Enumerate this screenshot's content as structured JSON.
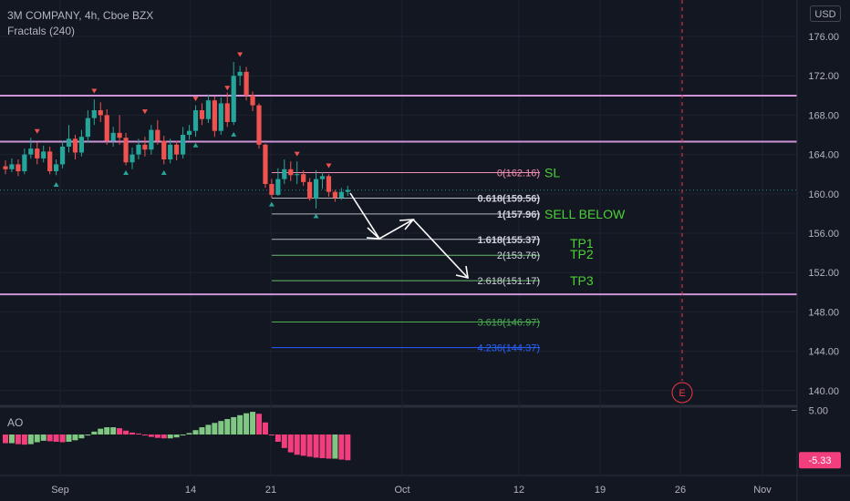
{
  "header": {
    "title": "3M COMPANY, 4h, Cboe BZX",
    "indicator": "Fractals (240)",
    "currency": "USD"
  },
  "colors": {
    "bg": "#131722",
    "up": "#26a69a",
    "down": "#ef5350",
    "hline": "#ce93d8",
    "fib": "#b2b5be",
    "fib3618": "#4caf50",
    "fib4236": "#2962ff",
    "green_text": "#4cd137",
    "ao_up": "#81c784",
    "ao_down": "#f23e7d",
    "current": "#1e8a7f"
  },
  "chart_data": {
    "type": "candlestick",
    "symbol": "3M COMPANY",
    "timeframe": "4h",
    "yaxis": {
      "ticks": [
        "176.00",
        "172.00",
        "168.00",
        "164.00",
        "160.00",
        "156.00",
        "152.00",
        "148.00",
        "144.00",
        "140.00"
      ]
    },
    "xaxis": {
      "ticks": [
        "Sep",
        "14",
        "21",
        "Oct",
        "12",
        "19",
        "26",
        "Nov"
      ]
    },
    "current_price": "160.37",
    "horizontal_lines": [
      {
        "price": 169.98,
        "label": "169.98"
      },
      {
        "price": 165.3,
        "label": "165.30"
      },
      {
        "price": 149.78,
        "label": "149.78"
      }
    ],
    "fib_levels": [
      {
        "price": 162.16,
        "label": "0(162.16)",
        "note": "SL"
      },
      {
        "price": 159.56,
        "label": "0.618(159.56)",
        "note": ""
      },
      {
        "price": 157.96,
        "label": "1(157.96)",
        "note": "SELL BELOW"
      },
      {
        "price": 155.37,
        "label": "1.618(155.37)",
        "note": "TP1"
      },
      {
        "price": 153.76,
        "label": "2(153.76)",
        "note": "TP2"
      },
      {
        "price": 151.17,
        "label": "2.618(151.17)",
        "note": "TP3"
      },
      {
        "price": 146.97,
        "label": "3.618(146.97)",
        "note": ""
      },
      {
        "price": 144.37,
        "label": "4.236(144.37)",
        "note": ""
      }
    ],
    "candles": [
      [
        162.8,
        162.5,
        163.4,
        162.0
      ],
      [
        162.5,
        163.0,
        163.6,
        162.2
      ],
      [
        163.0,
        162.3,
        163.5,
        161.8
      ],
      [
        162.3,
        164.0,
        164.6,
        162.0
      ],
      [
        164.0,
        164.6,
        165.7,
        163.6
      ],
      [
        164.6,
        163.6,
        165.2,
        163.0
      ],
      [
        163.6,
        164.3,
        164.9,
        163.2
      ],
      [
        164.3,
        162.3,
        164.8,
        162.0
      ],
      [
        162.3,
        163.0,
        163.5,
        161.9
      ],
      [
        163.0,
        164.8,
        165.4,
        162.6
      ],
      [
        164.8,
        165.6,
        167.0,
        164.2
      ],
      [
        165.6,
        164.2,
        166.0,
        163.5
      ],
      [
        164.2,
        165.8,
        166.5,
        163.8
      ],
      [
        165.8,
        167.7,
        168.5,
        165.2
      ],
      [
        167.7,
        168.5,
        169.6,
        167.0
      ],
      [
        168.5,
        168.0,
        169.3,
        167.3
      ],
      [
        168.0,
        165.4,
        168.6,
        165.0
      ],
      [
        165.4,
        166.2,
        166.8,
        164.8
      ],
      [
        166.2,
        165.7,
        168.0,
        165.0
      ],
      [
        165.7,
        163.2,
        166.2,
        162.9
      ],
      [
        163.2,
        164.0,
        164.7,
        162.5
      ],
      [
        164.0,
        165.0,
        165.6,
        163.5
      ],
      [
        165.0,
        164.5,
        165.8,
        163.8
      ],
      [
        164.5,
        166.5,
        167.0,
        164.0
      ],
      [
        166.5,
        165.4,
        167.5,
        165.0
      ],
      [
        165.4,
        163.5,
        165.9,
        163.0
      ],
      [
        163.5,
        165.0,
        165.6,
        163.1
      ],
      [
        165.0,
        164.0,
        165.4,
        163.4
      ],
      [
        164.0,
        166.0,
        166.8,
        163.6
      ],
      [
        166.0,
        166.4,
        167.0,
        165.5
      ],
      [
        166.4,
        168.5,
        169.0,
        165.8
      ],
      [
        168.5,
        167.6,
        169.2,
        167.0
      ],
      [
        167.6,
        169.5,
        170.1,
        167.2
      ],
      [
        169.5,
        166.4,
        169.9,
        165.8
      ],
      [
        166.4,
        169.2,
        169.8,
        166.0
      ],
      [
        169.2,
        167.3,
        170.3,
        166.8
      ],
      [
        167.3,
        172.0,
        173.4,
        167.0
      ],
      [
        172.0,
        172.4,
        173.0,
        171.0
      ],
      [
        172.4,
        170.0,
        172.9,
        169.5
      ],
      [
        170.0,
        169.0,
        170.4,
        168.4
      ],
      [
        169.0,
        165.0,
        169.2,
        164.6
      ],
      [
        165.0,
        161.0,
        165.1,
        160.6
      ],
      [
        161.0,
        159.9,
        161.5,
        159.6
      ],
      [
        159.9,
        161.5,
        162.6,
        159.8
      ],
      [
        161.5,
        162.5,
        163.5,
        161.0
      ],
      [
        162.5,
        161.9,
        163.3,
        161.3
      ],
      [
        161.9,
        162.0,
        163.3,
        161.0
      ],
      [
        162.0,
        161.2,
        162.4,
        160.8
      ],
      [
        161.2,
        159.5,
        161.6,
        159.3
      ],
      [
        159.5,
        161.5,
        162.4,
        158.5
      ],
      [
        161.5,
        161.8,
        162.2,
        160.5
      ],
      [
        161.8,
        160.2,
        162.0,
        159.7
      ],
      [
        160.2,
        159.6,
        160.4,
        159.2
      ],
      [
        159.6,
        160.2,
        160.6,
        159.4
      ],
      [
        160.2,
        160.4,
        160.8,
        159.8
      ]
    ],
    "fractals_up": [
      [
        5,
        166.3
      ],
      [
        14,
        170.4
      ],
      [
        22,
        168.3
      ],
      [
        30,
        169.6
      ],
      [
        35,
        170.7
      ],
      [
        37,
        174.1
      ],
      [
        46,
        164.0
      ],
      [
        51,
        162.8
      ]
    ],
    "fractals_down": [
      [
        8,
        161.0
      ],
      [
        19,
        162.2
      ],
      [
        25,
        162.2
      ],
      [
        30,
        165.0
      ],
      [
        36,
        166.1
      ],
      [
        42,
        159.0
      ],
      [
        49,
        157.8
      ]
    ],
    "event_marker": {
      "label": "E"
    },
    "ao": {
      "label": "AO",
      "ticks": [
        "5.00"
      ],
      "last_value": "-5.33",
      "values": [
        -1.8,
        -1.8,
        -2.0,
        -2.1,
        -2.0,
        -1.6,
        -1.3,
        -1.4,
        -1.5,
        -1.6,
        -1.5,
        -1.2,
        -0.8,
        -0.2,
        0.6,
        1.2,
        1.5,
        1.5,
        1.3,
        0.8,
        0.4,
        0.2,
        -0.2,
        -0.5,
        -0.7,
        -0.8,
        -0.8,
        -0.6,
        -0.2,
        0.3,
        0.9,
        1.5,
        2.0,
        2.4,
        2.8,
        3.2,
        3.6,
        4.0,
        4.4,
        4.7,
        4.3,
        2.5,
        0.0,
        -1.5,
        -2.8,
        -3.7,
        -4.2,
        -4.4,
        -4.6,
        -4.8,
        -4.9,
        -5.0,
        -5.0,
        -5.2,
        -5.33
      ]
    }
  },
  "annotations": {
    "arrows": "white zigzag arrow pointing down"
  }
}
